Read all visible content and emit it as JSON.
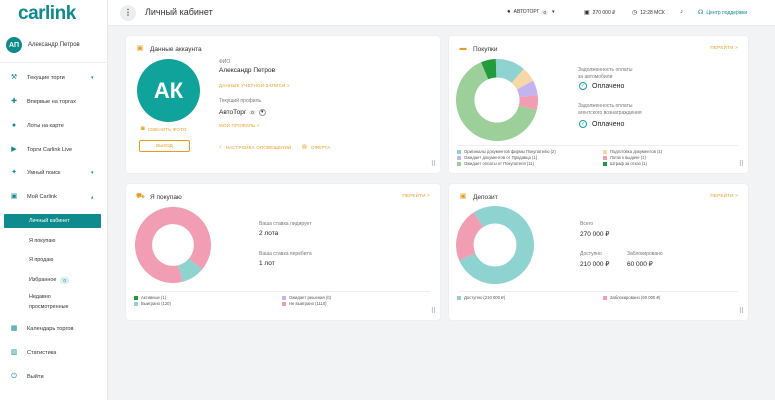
{
  "sidebar": {
    "logo": "carlink",
    "user": {
      "initials": "АП",
      "name": "Александр Петров"
    },
    "items": [
      {
        "label": "Текущие торги",
        "icon": "gavel-icon",
        "glyph": "⚒",
        "chevron": "▾"
      },
      {
        "label": "Впервые на торгах",
        "icon": "plus-circle-icon",
        "glyph": "✚"
      },
      {
        "label": "Лоты на карте",
        "icon": "map-pin-icon",
        "glyph": "●"
      },
      {
        "label": "Торги Carlink Live",
        "icon": "live-icon",
        "glyph": "▶"
      },
      {
        "label": "Умный поиск",
        "icon": "smart-search-icon",
        "glyph": "✦",
        "chevron": "▾"
      },
      {
        "label": "Мой Carlink",
        "icon": "profile-icon",
        "glyph": "▣",
        "chevron": "▾"
      }
    ],
    "subitems": [
      {
        "label": "Личный кабинет",
        "active": true
      },
      {
        "label": "Я покупаю"
      },
      {
        "label": "Я продаю"
      },
      {
        "label": "Избранное",
        "badge": "0"
      },
      {
        "label": "Недавно"
      },
      {
        "label": "просмотренные"
      }
    ],
    "bottom": [
      {
        "label": "Календарь торгов",
        "icon": "calendar-icon",
        "glyph": "▦"
      },
      {
        "label": "Статистика",
        "icon": "stats-icon",
        "glyph": "▥"
      },
      {
        "label": "Выйти",
        "icon": "power-icon",
        "glyph": "⏻"
      }
    ]
  },
  "topbar": {
    "menu_glyph": "⋮",
    "title": "Личный кабинет",
    "company": "АВТОТОРГ",
    "company_badge": "0",
    "balance": "270 000 ₽",
    "time": "12:28 МСК",
    "support": "Центр поддержки"
  },
  "account": {
    "title": "Данные аккаунта",
    "initials": "АК",
    "fio_label": "ФИО",
    "fio": "Александр Петров",
    "account_link": "ДАННЫЕ УЧЕТНОЙ ЗАПИСИ >",
    "profile_label": "Текущий профиль",
    "profile": "АвтоТорг",
    "profile_badge": "0",
    "my_profile_link": "МОЙ ПРОФИЛЬ >",
    "change_photo": "СМЕНИТЬ ФОТО",
    "logout": "ВЫХОД",
    "notifications": "НАСТРОЙКА ОПОВЕЩЕНИЙ",
    "offer": "ОФЕРТА"
  },
  "purchases": {
    "title": "Покупки",
    "goto": "ПЕРЕЙТИ >",
    "debt_auto_line1": "Задолженность оплаты",
    "debt_auto_line2": "за автомобили",
    "debt_auto_status": "Оплачено",
    "debt_agent_line1": "Задолженность оплаты",
    "debt_agent_line2": "агентского вознаграждения",
    "debt_agent_status": "Оплачено",
    "legend": [
      {
        "label": "Оригиналы документов фирмы Покупателю (2)",
        "color": "#8fd3d0"
      },
      {
        "label": "Подготовка документов (1)",
        "color": "#f5d7a8"
      },
      {
        "label": "Ожидает документов от Продавца (1)",
        "color": "#c4b3ee"
      },
      {
        "label": "Лоток к выдаче (1)",
        "color": "#f19db4"
      },
      {
        "label": "Ожидает оплаты от Покупателя (11)",
        "color": "#9ccf9a"
      },
      {
        "label": "Штраф за отказ (1)",
        "color": "#239a3c"
      }
    ]
  },
  "buying": {
    "title": "Я покупаю",
    "goto": "ПЕРЕЙТИ >",
    "leading_label": "Ваша ставка лидирует",
    "leading_value": "2 лота",
    "outbid_label": "Ваша ставка перебита",
    "outbid_value": "1 лот",
    "legend": [
      {
        "label": "Активные (1)",
        "color": "#239a3c"
      },
      {
        "label": "Ожидает решения (0)",
        "color": "#c4b3ee"
      },
      {
        "label": "Выиграно (120)",
        "color": "#8fd3d0"
      },
      {
        "label": "Не выиграно (1110)",
        "color": "#f19db4"
      }
    ]
  },
  "deposit": {
    "title": "Депозит",
    "goto": "ПЕРЕЙТИ >",
    "total_label": "Всего",
    "total_value": "270 000 ₽",
    "available_label": "Доступно",
    "available_value": "210 000 ₽",
    "blocked_label": "Заблокировано",
    "blocked_value": "60 000 ₽",
    "legend": [
      {
        "label": "Доступно (210 000 ₽)",
        "color": "#8fd3d0"
      },
      {
        "label": "Заблокировано (60 000 ₽)",
        "color": "#f19db4"
      }
    ]
  },
  "icons": {
    "drag_glyph": "⠿"
  },
  "chart_data": [
    {
      "type": "pie",
      "categories": [
        "Оригиналы документов фирмы Покупателю",
        "Подготовка документов",
        "Ожидает документов от Продавца",
        "Лоток к выдаче",
        "Ожидает оплаты от Покупателя",
        "Штраф за отказ"
      ],
      "values": [
        2,
        1,
        1,
        1,
        11,
        1
      ],
      "colors": [
        "#8fd3d0",
        "#f5d7a8",
        "#c4b3ee",
        "#f19db4",
        "#9ccf9a",
        "#239a3c"
      ]
    },
    {
      "type": "pie",
      "categories": [
        "Активные",
        "Ожидает решения",
        "Выиграно",
        "Не выиграно"
      ],
      "values": [
        1,
        0,
        120,
        1110
      ],
      "colors": [
        "#239a3c",
        "#c4b3ee",
        "#8fd3d0",
        "#f19db4"
      ]
    },
    {
      "type": "pie",
      "categories": [
        "Доступно",
        "Заблокировано"
      ],
      "values": [
        210000,
        60000
      ],
      "colors": [
        "#8fd3d0",
        "#f19db4"
      ]
    }
  ]
}
